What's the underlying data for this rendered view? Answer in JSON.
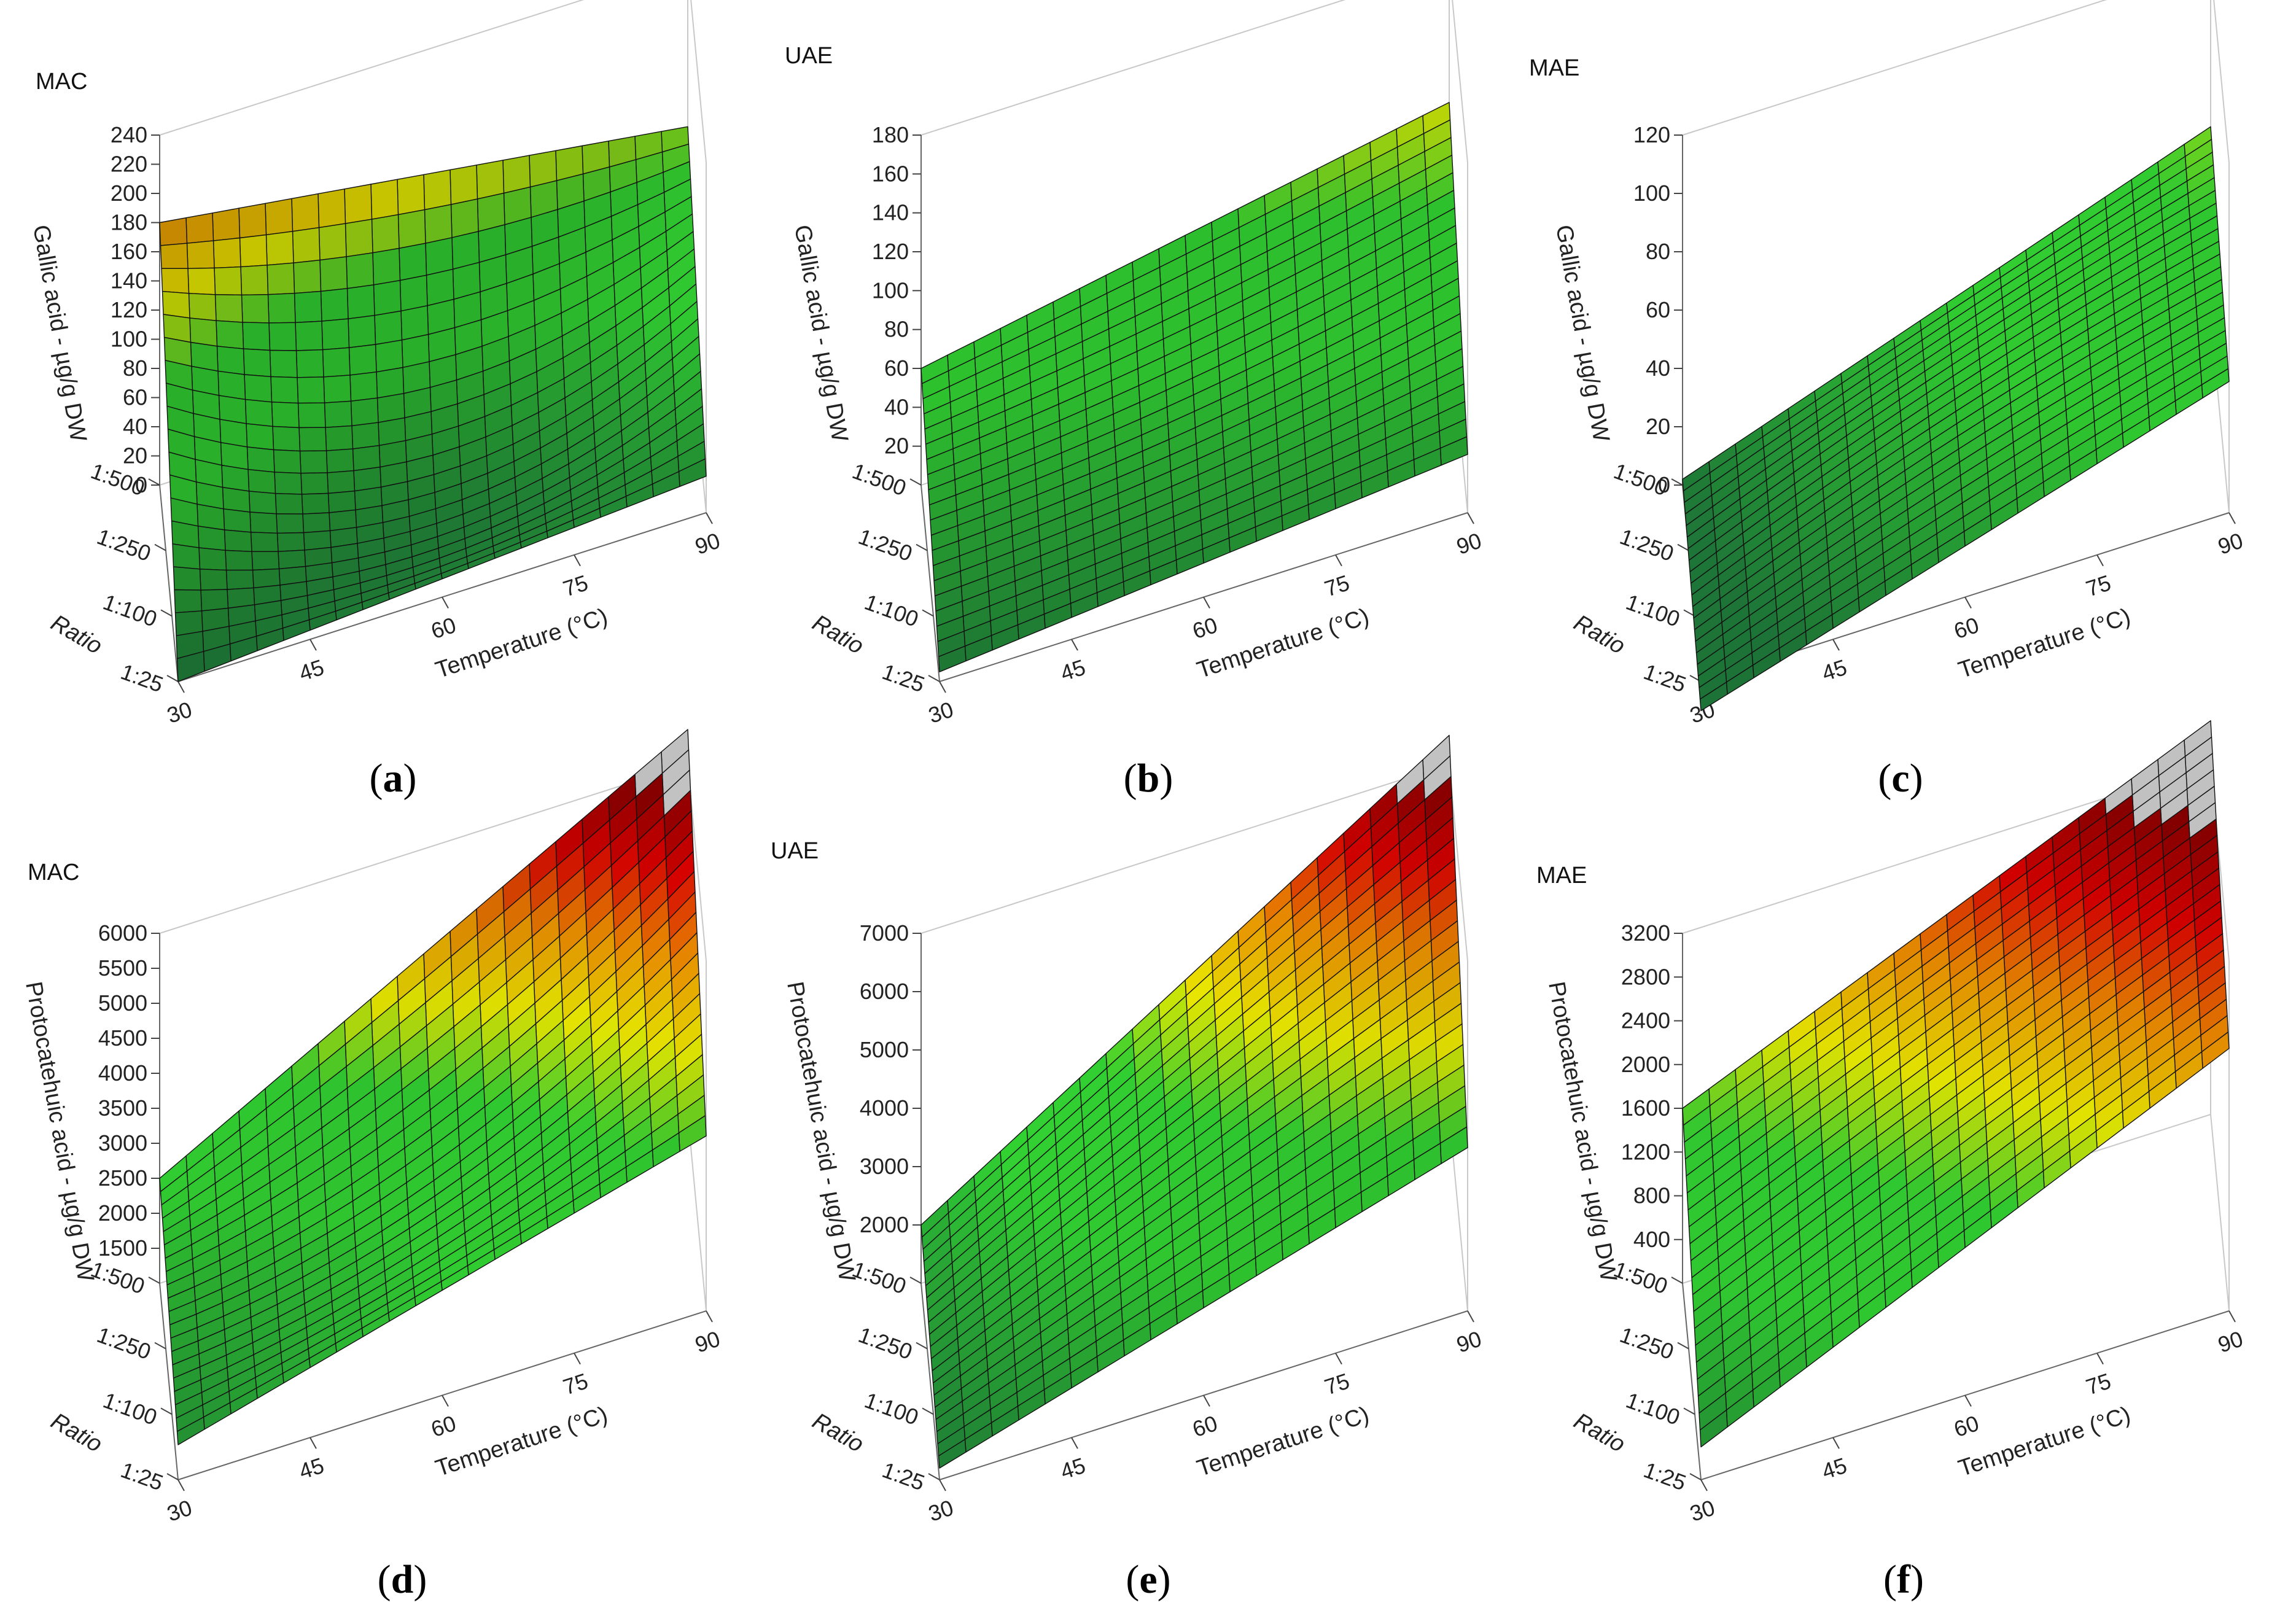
{
  "figure": {
    "panels": [
      {
        "id": "a",
        "caption_letter": "a",
        "method": "MAC"
      },
      {
        "id": "b",
        "caption_letter": "b",
        "method": "UAE"
      },
      {
        "id": "c",
        "caption_letter": "c",
        "method": "MAE"
      },
      {
        "id": "d",
        "caption_letter": "d",
        "method": "MAC"
      },
      {
        "id": "e",
        "caption_letter": "e",
        "method": "UAE"
      },
      {
        "id": "f",
        "caption_letter": "f",
        "method": "MAE"
      }
    ]
  },
  "colors": {
    "low": "#1f7a3a",
    "mid_green": "#33d633",
    "yellow": "#f2f200",
    "orange": "#f28c00",
    "red": "#e00000",
    "high": "#8a0000",
    "out_of_range": "#cfcfcf",
    "mesh": "#111111"
  },
  "chart_data": [
    {
      "type": "surface",
      "panel": "a",
      "title": "MAC",
      "xlabel": "Temperature (°C)",
      "ylabel": "Ratio",
      "zlabel": "Gallic acid - µg/g DW",
      "x_ticks": [
        "30",
        "45",
        "60",
        "75",
        "90"
      ],
      "y_ticks": [
        "1:25",
        "1:100",
        "1:250",
        "1:500"
      ],
      "z_ticks": [
        "0",
        "20",
        "40",
        "60",
        "80",
        "100",
        "120",
        "140",
        "160",
        "180",
        "200",
        "220",
        "240"
      ],
      "xlim": [
        30,
        90
      ],
      "zlim": [
        0,
        240
      ],
      "corners": {
        "t30_r500": 180,
        "t90_r500": 130,
        "t30_r25": 0,
        "t90_r25": 25
      },
      "center": 30
    },
    {
      "type": "surface",
      "panel": "b",
      "title": "UAE",
      "xlabel": "Temperature (°C)",
      "ylabel": "Ratio",
      "zlabel": "Gallic acid - µg/g DW",
      "x_ticks": [
        "30",
        "45",
        "60",
        "75",
        "90"
      ],
      "y_ticks": [
        "1:25",
        "1:100",
        "1:250",
        "1:500"
      ],
      "z_ticks": [
        "20",
        "40",
        "60",
        "80",
        "100",
        "120",
        "140",
        "160",
        "180"
      ],
      "xlim": [
        30,
        90
      ],
      "zlim": [
        0,
        180
      ],
      "corners": {
        "t30_r500": 60,
        "t90_r500": 110,
        "t30_r25": 5,
        "t90_r25": 30
      },
      "center": 45
    },
    {
      "type": "surface",
      "panel": "c",
      "title": "MAE",
      "xlabel": "Temperature (°C)",
      "ylabel": "Ratio",
      "zlabel": "Gallic acid - µg/g DW",
      "x_ticks": [
        "30",
        "45",
        "60",
        "75",
        "90"
      ],
      "y_ticks": [
        "1:25",
        "1:100",
        "1:250",
        "1:500"
      ],
      "z_ticks": [
        "0",
        "20",
        "40",
        "60",
        "80",
        "100",
        "120"
      ],
      "xlim": [
        30,
        90
      ],
      "zlim": [
        0,
        120
      ],
      "corners": {
        "t30_r500": 2,
        "t90_r500": 65,
        "t30_r25": -10,
        "t90_r25": 45
      },
      "center": 30
    },
    {
      "type": "surface",
      "panel": "d",
      "title": "MAC",
      "xlabel": "Temperature (°C)",
      "ylabel": "Ratio",
      "zlabel": "Protocatehuic acid - µg/g DW",
      "x_ticks": [
        "30",
        "45",
        "60",
        "75",
        "90"
      ],
      "y_ticks": [
        "1:25",
        "1:100",
        "1:250",
        "1:500"
      ],
      "z_ticks": [
        "1500",
        "2000",
        "2500",
        "3000",
        "3500",
        "4000",
        "4500",
        "5000",
        "5500",
        "6000"
      ],
      "xlim": [
        30,
        90
      ],
      "zlim": [
        1000,
        6000
      ],
      "corners": {
        "t30_r500": 2500,
        "t90_r500": 6500,
        "t30_r25": 1500,
        "t90_r25": 3500
      },
      "center": 2900
    },
    {
      "type": "surface",
      "panel": "e",
      "title": "UAE",
      "xlabel": "Temperature (°C)",
      "ylabel": "Ratio",
      "zlabel": "Protocatehuic acid - µg/g DW",
      "x_ticks": [
        "30",
        "45",
        "60",
        "75",
        "90"
      ],
      "y_ticks": [
        "1:25",
        "1:100",
        "1:250",
        "1:500"
      ],
      "z_ticks": [
        "2000",
        "3000",
        "4000",
        "5000",
        "6000",
        "7000"
      ],
      "xlim": [
        30,
        90
      ],
      "zlim": [
        1000,
        7000
      ],
      "corners": {
        "t30_r500": 2000,
        "t90_r500": 7500,
        "t30_r25": 1200,
        "t90_r25": 3800
      },
      "center": 3700
    },
    {
      "type": "surface",
      "panel": "f",
      "title": "MAE",
      "xlabel": "Temperature (°C)",
      "ylabel": "Ratio",
      "zlabel": "Protocatehuic acid - µg/g DW",
      "x_ticks": [
        "30",
        "45",
        "60",
        "75",
        "90"
      ],
      "y_ticks": [
        "1:25",
        "1:100",
        "1:250",
        "1:500"
      ],
      "z_ticks": [
        "400",
        "800",
        "1200",
        "1600",
        "2000",
        "2400",
        "2800",
        "3200"
      ],
      "xlim": [
        30,
        90
      ],
      "zlim": [
        0,
        3200
      ],
      "corners": {
        "t30_r500": 1600,
        "t90_r500": 3600,
        "t30_r25": 300,
        "t90_r25": 2400
      },
      "center": 2000
    }
  ]
}
